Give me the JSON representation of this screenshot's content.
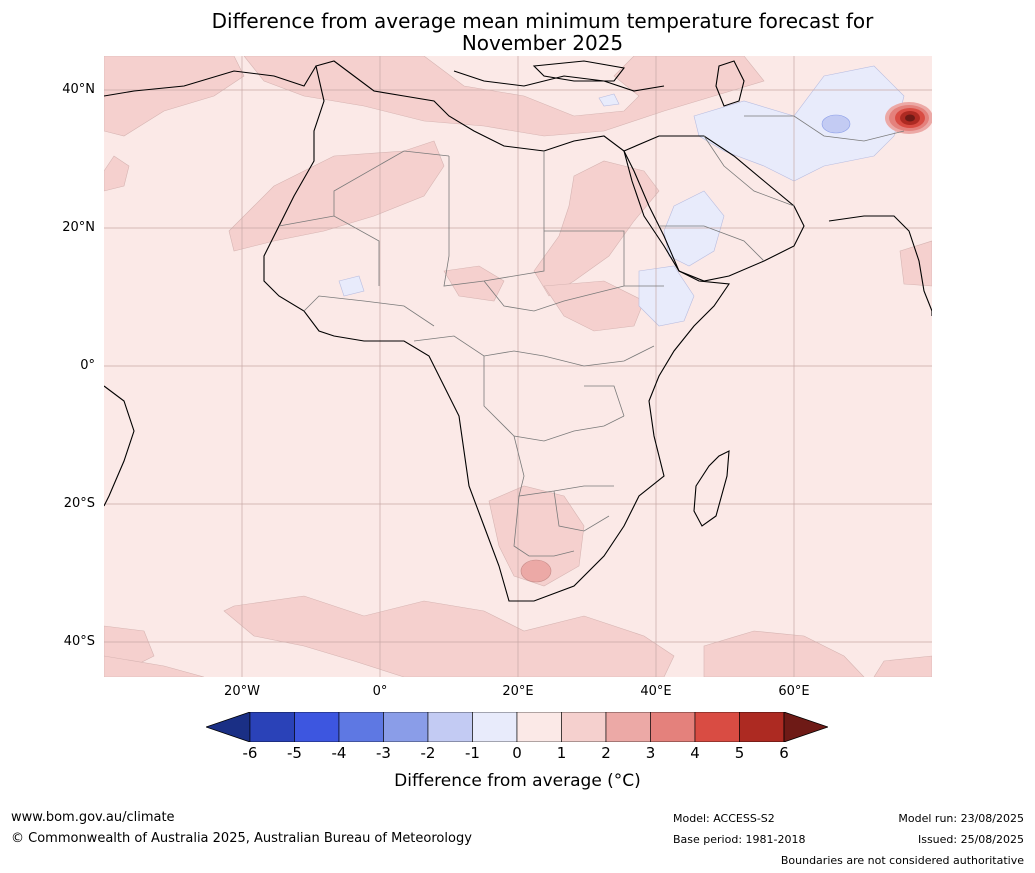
{
  "title": {
    "line1": "Difference from average mean minimum temperature forecast for",
    "line2": "November 2025"
  },
  "map": {
    "lat_labels": [
      "40°N",
      "20°N",
      "0°",
      "20°S",
      "40°S"
    ],
    "lon_labels": [
      "20°W",
      "0°",
      "20°E",
      "40°E",
      "60°E"
    ],
    "dominant_anomaly": "0 to 1",
    "notable_features": [
      "+1 to +2 over Sahara, Sudan/Egypt, Mediterranean, southern Africa interior, Southern Ocean",
      "-1 to 0 over Middle East, Arabian Peninsula, Horn of Africa",
      "+2 to +3 over South Africa highveld",
      "+3 to +6 hotspot near Pamir/northeastern Afghanistan"
    ]
  },
  "colorbar": {
    "ticks": [
      "-6",
      "-5",
      "-4",
      "-3",
      "-2",
      "-1",
      "0",
      "1",
      "2",
      "3",
      "4",
      "5",
      "6"
    ],
    "colors": [
      "#1a2f85",
      "#2a42b8",
      "#3d56e0",
      "#5e78e3",
      "#8a9de8",
      "#c3cbf3",
      "#e8ebfb",
      "#fbe9e7",
      "#f5d0ce",
      "#eca9a6",
      "#e4817c",
      "#d94c43",
      "#ad2a22",
      "#6e1a16"
    ],
    "caption": "Difference from average (°C)"
  },
  "footer": {
    "website": "www.bom.gov.au/climate",
    "copyright": "© Commonwealth of Australia 2025, Australian Bureau of Meteorology",
    "model": "Model: ACCESS-S2",
    "base_period": "Base period: 1981-2018",
    "model_run": "Model run: 23/08/2025",
    "issued": "Issued: 25/08/2025",
    "disclaimer": "Boundaries are not considered authoritative"
  }
}
